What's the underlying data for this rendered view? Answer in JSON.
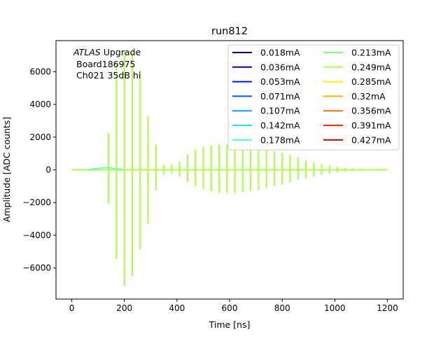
{
  "chart_data": {
    "type": "line",
    "title": "run812",
    "xlabel": "Time [ns]",
    "ylabel": "Amplitude [ADC counts]",
    "xlim": [
      -60,
      1260
    ],
    "ylim": [
      -7900,
      7900
    ],
    "xticks": [
      0,
      200,
      400,
      600,
      800,
      1000,
      1200
    ],
    "yticks": [
      -6000,
      -4000,
      -2000,
      0,
      2000,
      4000,
      6000
    ],
    "xtick_labels": [
      "0",
      "200",
      "400",
      "600",
      "800",
      "1000",
      "1200"
    ],
    "ytick_labels": [
      "−6000",
      "−4000",
      "−2000",
      "0",
      "2000",
      "4000",
      "6000"
    ],
    "grid": false,
    "legend_position": "top-right",
    "legend_columns": 2,
    "annotation": {
      "experiment": "ATLAS",
      "experiment_suffix": " Upgrade",
      "board": "Board186975",
      "channel": "Ch021 35dB hi"
    },
    "series": [
      {
        "name": "0.018mA",
        "color": "#00007f"
      },
      {
        "name": "0.036mA",
        "color": "#0000c8"
      },
      {
        "name": "0.053mA",
        "color": "#0010ff"
      },
      {
        "name": "0.071mA",
        "color": "#0058ff"
      },
      {
        "name": "0.107mA",
        "color": "#00a4ff"
      },
      {
        "name": "0.142mA",
        "color": "#1be8f5"
      },
      {
        "name": "0.178mA",
        "color": "#4dffc9"
      },
      {
        "name": "0.213mA",
        "color": "#7dff7a"
      },
      {
        "name": "0.249mA",
        "color": "#aeff49"
      },
      {
        "name": "0.285mA",
        "color": "#f6f500"
      },
      {
        "name": "0.32mA",
        "color": "#ffb400"
      },
      {
        "name": "0.356mA",
        "color": "#ff7000"
      },
      {
        "name": "0.391mA",
        "color": "#ff2a00"
      },
      {
        "name": "0.427mA",
        "color": "#c30000"
      }
    ],
    "visible_series_name": "0.249mA",
    "spikes": [
      {
        "t": 140,
        "ymin": -2050,
        "ymax": 2250
      },
      {
        "t": 170,
        "ymin": -5450,
        "ymax": 6500
      },
      {
        "t": 200,
        "ymin": -7100,
        "ymax": 7300
      },
      {
        "t": 230,
        "ymin": -6500,
        "ymax": 7200
      },
      {
        "t": 260,
        "ymin": -4850,
        "ymax": 6050
      },
      {
        "t": 290,
        "ymin": -3300,
        "ymax": 3300
      },
      {
        "t": 320,
        "ymin": -1250,
        "ymax": 1550
      },
      {
        "t": 350,
        "ymin": -300,
        "ymax": 300
      },
      {
        "t": 380,
        "ymin": -250,
        "ymax": 350
      },
      {
        "t": 410,
        "ymin": -400,
        "ymax": 500
      },
      {
        "t": 440,
        "ymin": -750,
        "ymax": 950
      },
      {
        "t": 470,
        "ymin": -1000,
        "ymax": 1250
      },
      {
        "t": 500,
        "ymin": -1150,
        "ymax": 1400
      },
      {
        "t": 530,
        "ymin": -1300,
        "ymax": 1500
      },
      {
        "t": 560,
        "ymin": -1400,
        "ymax": 1550
      },
      {
        "t": 590,
        "ymin": -1400,
        "ymax": 1550
      },
      {
        "t": 620,
        "ymin": -1400,
        "ymax": 1550
      },
      {
        "t": 650,
        "ymin": -1350,
        "ymax": 1500
      },
      {
        "t": 680,
        "ymin": -1300,
        "ymax": 1450
      },
      {
        "t": 710,
        "ymin": -1250,
        "ymax": 1400
      },
      {
        "t": 740,
        "ymin": -1100,
        "ymax": 1250
      },
      {
        "t": 770,
        "ymin": -1000,
        "ymax": 1150
      },
      {
        "t": 800,
        "ymin": -900,
        "ymax": 1050
      },
      {
        "t": 830,
        "ymin": -750,
        "ymax": 900
      },
      {
        "t": 860,
        "ymin": -600,
        "ymax": 750
      },
      {
        "t": 890,
        "ymin": -500,
        "ymax": 600
      },
      {
        "t": 920,
        "ymin": -400,
        "ymax": 450
      },
      {
        "t": 950,
        "ymin": -300,
        "ymax": 350
      },
      {
        "t": 980,
        "ymin": -220,
        "ymax": 260
      },
      {
        "t": 1010,
        "ymin": -160,
        "ymax": 190
      },
      {
        "t": 1040,
        "ymin": -110,
        "ymax": 130
      },
      {
        "t": 1070,
        "ymin": -80,
        "ymax": 90
      },
      {
        "t": 1100,
        "ymin": -50,
        "ymax": 60
      },
      {
        "t": 1130,
        "ymin": -30,
        "ymax": 40
      }
    ],
    "baseline": {
      "tmin": 0,
      "tmax": 1200,
      "y": 0
    },
    "early_bump": {
      "tmin": 60,
      "tmax": 200,
      "peak_t": 130,
      "peak_y": 120
    }
  }
}
